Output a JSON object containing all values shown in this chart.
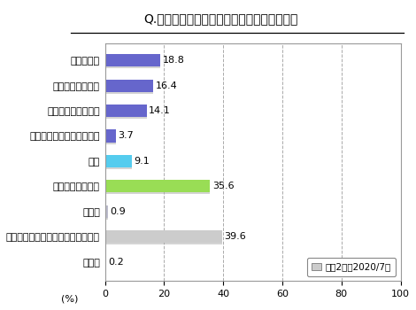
{
  "title": "Q.今年の夏はどのように過ごす予定ですか？",
  "categories": [
    "近場に外出",
    "日帰りで出かける",
    "泊りがけで出かける",
    "その他で外出（帰省以外）",
    "帰省",
    "主に自宅で過ごす",
    "その他",
    "特に予定はない、まだ決めていない",
    "無回答"
  ],
  "values": [
    18.8,
    16.4,
    14.1,
    3.7,
    9.1,
    35.6,
    0.9,
    39.6,
    0.2
  ],
  "colors": [
    "#6666cc",
    "#6666cc",
    "#6666cc",
    "#6666cc",
    "#55ccee",
    "#99dd55",
    "#bbbbcc",
    "#cccccc",
    "#bbbbcc"
  ],
  "shadow_color": "#aaaaaa",
  "xlabel": "(%)",
  "xlim": [
    0,
    100
  ],
  "xticks": [
    0,
    20,
    40,
    60,
    80,
    100
  ],
  "legend_text": "：第2回（2020/7）",
  "background_color": "#ffffff",
  "plot_bg_color": "#ffffff",
  "border_color": "#999999",
  "grid_color": "#aaaaaa"
}
